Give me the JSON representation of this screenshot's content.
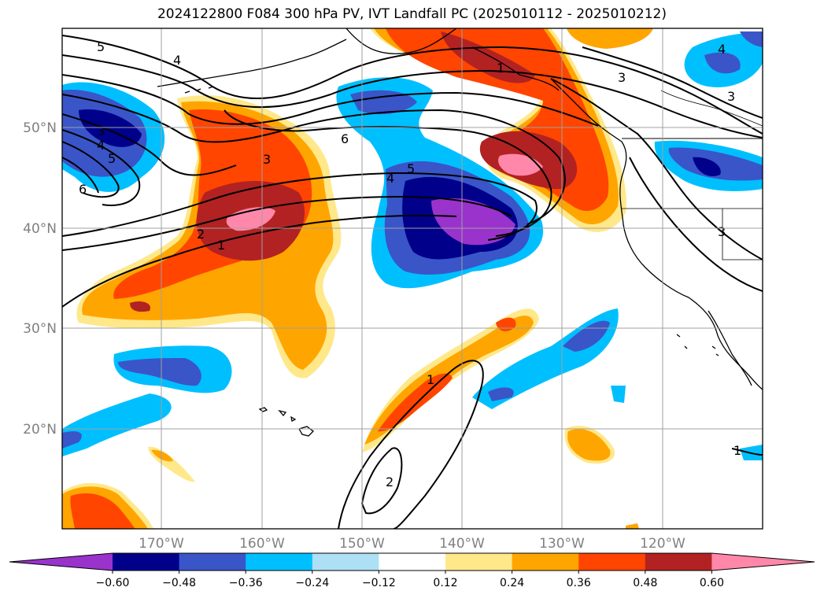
{
  "title": "2024122800 F084 300 hPa PV, IVT Landfall PC (2025010112 - 2025010212)",
  "map": {
    "lat_ticks": [
      "50°N",
      "40°N",
      "30°N",
      "20°N"
    ],
    "lon_ticks": [
      "170°W",
      "160°W",
      "150°W",
      "140°W",
      "130°W",
      "120°W"
    ],
    "contour_labels": [
      "5",
      "4",
      "3",
      "4",
      "5",
      "6",
      "3",
      "2",
      "1",
      "6",
      "5",
      "4",
      "1",
      "3",
      "4",
      "3",
      "3",
      "1",
      "2",
      "1"
    ]
  },
  "colorbar": {
    "ticks": [
      "−0.60",
      "−0.48",
      "−0.36",
      "−0.24",
      "−0.12",
      "0.12",
      "0.24",
      "0.36",
      "0.48",
      "0.60"
    ],
    "colors": [
      "#9933cc",
      "#00008b",
      "#3a55c8",
      "#00bfff",
      "#ade0f5",
      "#ffffff",
      "#ffe88a",
      "#ffa500",
      "#ff4500",
      "#b22222",
      "#ff88aa"
    ]
  }
}
